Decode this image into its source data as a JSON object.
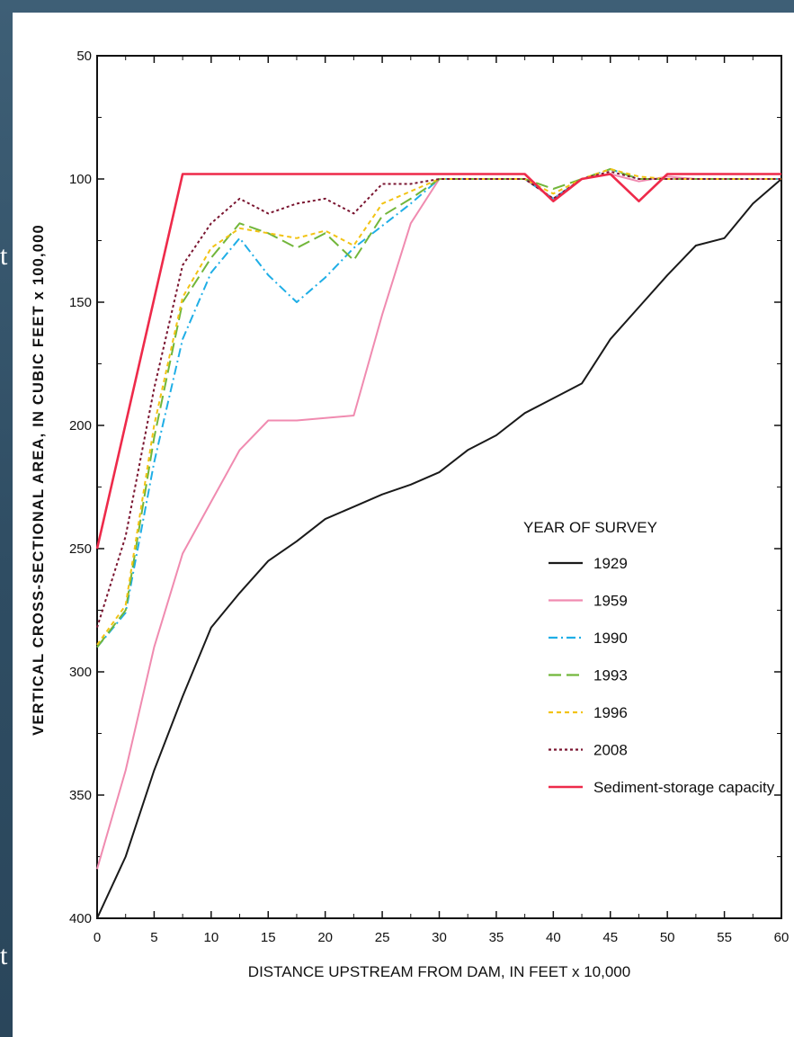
{
  "background_text": {
    "left_fragment_1": "t",
    "left_fragment_2": "t"
  },
  "chart_data": {
    "type": "line",
    "title": "",
    "xlabel": "DISTANCE UPSTREAM FROM DAM, IN FEET x 10,000",
    "ylabel": "VERTICAL CROSS-SECTIONAL AREA, IN CUBIC FEET x 100,000",
    "xlim": [
      0,
      60
    ],
    "ylim": [
      50,
      400
    ],
    "y_inverted": true,
    "grid": false,
    "legend_position": "lower-right",
    "legend_title": "YEAR OF SURVEY",
    "x_ticks": [
      0,
      5,
      10,
      15,
      20,
      25,
      30,
      35,
      40,
      45,
      50,
      55,
      60
    ],
    "y_ticks": [
      50,
      100,
      150,
      200,
      250,
      300,
      350,
      400
    ],
    "series": [
      {
        "name": "1929",
        "color": "#1a1a1a",
        "dash": "",
        "x": [
          0,
          2.5,
          5,
          7.5,
          10,
          12.5,
          15,
          17.5,
          20,
          22.5,
          25,
          27.5,
          30,
          32.5,
          35,
          37.5,
          40,
          42.5,
          45,
          47.5,
          50,
          52.5,
          55,
          57.5,
          60
        ],
        "y": [
          400,
          375,
          340,
          310,
          282,
          268,
          255,
          247,
          238,
          233,
          228,
          224,
          219,
          210,
          204,
          195,
          189,
          183,
          165,
          152,
          139,
          127,
          124,
          110,
          100
        ]
      },
      {
        "name": "1959",
        "color": "#f08bb0",
        "dash": "",
        "x": [
          0,
          2.5,
          5,
          7.5,
          10,
          12.5,
          15,
          17.5,
          20,
          22.5,
          25,
          27.5,
          30,
          32.5,
          35,
          37.5,
          40,
          42.5,
          45,
          47.5,
          50,
          52.5,
          55,
          57.5,
          60
        ],
        "y": [
          380,
          340,
          290,
          252,
          231,
          210,
          198,
          198,
          197,
          196,
          155,
          118,
          100,
          100,
          100,
          100,
          108,
          100,
          98,
          101,
          99,
          100,
          100,
          100,
          100
        ]
      },
      {
        "name": "1990",
        "color": "#1faee6",
        "dash": "10,4,2,4",
        "x": [
          0,
          2.5,
          5,
          7.5,
          10,
          12.5,
          15,
          17.5,
          20,
          22.5,
          25,
          27.5,
          30,
          32.5,
          35,
          37.5,
          40,
          42.5,
          45,
          47.5,
          50,
          52.5,
          55,
          57.5,
          60
        ],
        "y": [
          290,
          276,
          215,
          165,
          138,
          124,
          139,
          150,
          140,
          128,
          119,
          110,
          100,
          100,
          100,
          100,
          108,
          100,
          96,
          100,
          100,
          100,
          100,
          100,
          100
        ]
      },
      {
        "name": "1993",
        "color": "#72b63a",
        "dash": "14,6",
        "x": [
          0,
          2.5,
          5,
          7.5,
          10,
          12.5,
          15,
          17.5,
          20,
          22.5,
          25,
          27.5,
          30,
          32.5,
          35,
          37.5,
          40,
          42.5,
          45,
          47.5,
          50,
          52.5,
          55,
          57.5,
          60
        ],
        "y": [
          290,
          275,
          205,
          150,
          132,
          118,
          122,
          128,
          122,
          133,
          115,
          108,
          100,
          100,
          100,
          100,
          104,
          100,
          96,
          100,
          100,
          100,
          100,
          100,
          100
        ]
      },
      {
        "name": "1996",
        "color": "#f2c314",
        "dash": "5,4",
        "x": [
          0,
          2.5,
          5,
          7.5,
          10,
          12.5,
          15,
          17.5,
          20,
          22.5,
          25,
          27.5,
          30,
          32.5,
          35,
          37.5,
          40,
          42.5,
          45,
          47.5,
          50,
          52.5,
          55,
          57.5,
          60
        ],
        "y": [
          289,
          273,
          200,
          148,
          128,
          120,
          122,
          124,
          121,
          127,
          110,
          105,
          100,
          100,
          100,
          100,
          106,
          100,
          96,
          99,
          100,
          100,
          100,
          100,
          100
        ]
      },
      {
        "name": "2008",
        "color": "#7a1530",
        "dash": "3,3",
        "x": [
          0,
          2.5,
          5,
          7.5,
          10,
          12.5,
          15,
          17.5,
          20,
          22.5,
          25,
          27.5,
          30,
          32.5,
          35,
          37.5,
          40,
          42.5,
          45,
          47.5,
          50,
          52.5,
          55,
          57.5,
          60
        ],
        "y": [
          282,
          245,
          185,
          135,
          118,
          108,
          114,
          110,
          108,
          114,
          102,
          102,
          100,
          100,
          100,
          100,
          108,
          100,
          97,
          100,
          100,
          100,
          100,
          100,
          100
        ]
      },
      {
        "name": "Sediment-storage capacity",
        "color": "#ee2a4a",
        "dash": "",
        "x": [
          0,
          7.5,
          37.5,
          40,
          42.5,
          45,
          47.5,
          50,
          60
        ],
        "y": [
          250,
          98,
          98,
          109,
          100,
          98,
          109,
          98,
          98
        ]
      }
    ]
  }
}
